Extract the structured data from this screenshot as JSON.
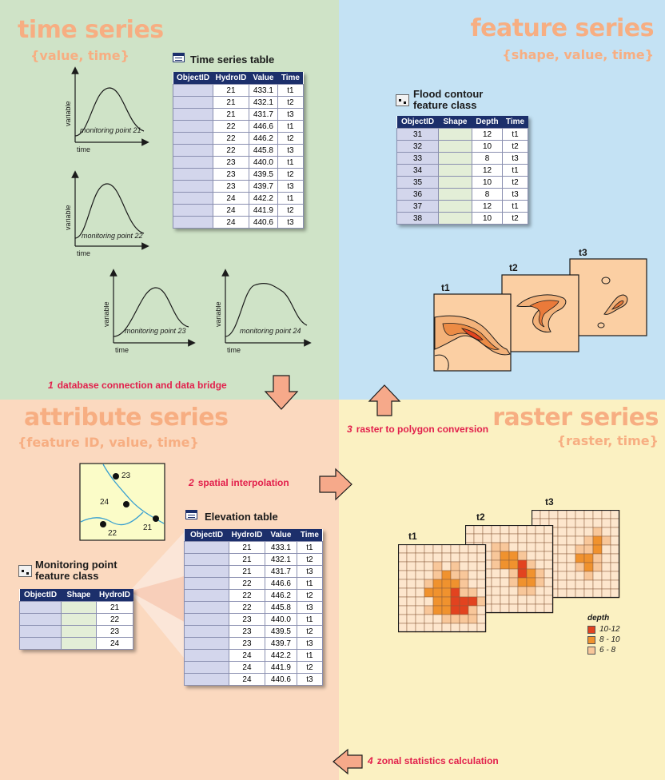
{
  "quadrants": {
    "time_series": {
      "title": "time series",
      "subtitle": "{value, time}"
    },
    "feature_series": {
      "title": "feature series",
      "subtitle": "{shape, value, time}"
    },
    "attribute_series": {
      "title": "attribute series",
      "subtitle": "{feature ID, value, time}"
    },
    "raster_series": {
      "title": "raster series",
      "subtitle": "{raster, time}"
    }
  },
  "time_series_table": {
    "label": "Time series table",
    "columns": [
      "ObjectID",
      "HydroID",
      "Value",
      "Time"
    ],
    "rows": [
      [
        "",
        "21",
        "433.1",
        "t1"
      ],
      [
        "",
        "21",
        "432.1",
        "t2"
      ],
      [
        "",
        "21",
        "431.7",
        "t3"
      ],
      [
        "",
        "22",
        "446.6",
        "t1"
      ],
      [
        "",
        "22",
        "446.2",
        "t2"
      ],
      [
        "",
        "22",
        "445.8",
        "t3"
      ],
      [
        "",
        "23",
        "440.0",
        "t1"
      ],
      [
        "",
        "23",
        "439.5",
        "t2"
      ],
      [
        "",
        "23",
        "439.7",
        "t3"
      ],
      [
        "",
        "24",
        "442.2",
        "t1"
      ],
      [
        "",
        "24",
        "441.9",
        "t2"
      ],
      [
        "",
        "24",
        "440.6",
        "t3"
      ]
    ]
  },
  "hydrographs": {
    "axis_y": "variable",
    "axis_x": "time",
    "points": [
      "monitoring point 21",
      "monitoring point 22",
      "monitoring point 23",
      "monitoring point 24"
    ]
  },
  "flood_table": {
    "label_line1": "Flood contour",
    "label_line2": "feature class",
    "columns": [
      "ObjectID",
      "Shape",
      "Depth",
      "Time"
    ],
    "rows": [
      [
        "31",
        "",
        "12",
        "t1"
      ],
      [
        "32",
        "",
        "10",
        "t2"
      ],
      [
        "33",
        "",
        "8",
        "t3"
      ],
      [
        "34",
        "",
        "12",
        "t1"
      ],
      [
        "35",
        "",
        "10",
        "t2"
      ],
      [
        "36",
        "",
        "8",
        "t3"
      ],
      [
        "37",
        "",
        "12",
        "t1"
      ],
      [
        "38",
        "",
        "10",
        "t2"
      ]
    ]
  },
  "contour_maps": [
    "t1",
    "t2",
    "t3"
  ],
  "steps": {
    "s1": {
      "num": "1",
      "text": "database connection and data bridge"
    },
    "s2": {
      "num": "2",
      "text": "spatial interpolation"
    },
    "s3": {
      "num": "3",
      "text": "raster to polygon conversion"
    },
    "s4": {
      "num": "4",
      "text": "zonal statistics calculation"
    }
  },
  "point_map_labels": [
    "23",
    "24",
    "22",
    "21"
  ],
  "elevation_table": {
    "label": "Elevation table",
    "columns": [
      "ObjectID",
      "HydroID",
      "Value",
      "Time"
    ],
    "rows": [
      [
        "",
        "21",
        "433.1",
        "t1"
      ],
      [
        "",
        "21",
        "432.1",
        "t2"
      ],
      [
        "",
        "21",
        "431.7",
        "t3"
      ],
      [
        "",
        "22",
        "446.6",
        "t1"
      ],
      [
        "",
        "22",
        "446.2",
        "t2"
      ],
      [
        "",
        "22",
        "445.8",
        "t3"
      ],
      [
        "",
        "23",
        "440.0",
        "t1"
      ],
      [
        "",
        "23",
        "439.5",
        "t2"
      ],
      [
        "",
        "23",
        "439.7",
        "t3"
      ],
      [
        "",
        "24",
        "442.2",
        "t1"
      ],
      [
        "",
        "24",
        "441.9",
        "t2"
      ],
      [
        "",
        "24",
        "440.6",
        "t3"
      ]
    ]
  },
  "monitoring_table": {
    "label_line1": "Monitoring point",
    "label_line2": "feature class",
    "columns": [
      "ObjectID",
      "Shape",
      "HydroID"
    ],
    "rows": [
      [
        "",
        "",
        "21"
      ],
      [
        "",
        "",
        "22"
      ],
      [
        "",
        "",
        "23"
      ],
      [
        "",
        "",
        "24"
      ]
    ]
  },
  "raster_maps": [
    "t1",
    "t2",
    "t3"
  ],
  "legend": {
    "title": "depth",
    "items": [
      {
        "label": "10-12",
        "color": "#e2431f"
      },
      {
        "label": "8 - 10",
        "color": "#f0922e"
      },
      {
        "label": "6 - 8",
        "color": "#f8c79a"
      }
    ]
  },
  "colors": {
    "navy": "#1c2f6b",
    "step_red": "#e2204c",
    "title_orange": "#f7ae82",
    "arrow_fill": "#f6a98a"
  }
}
